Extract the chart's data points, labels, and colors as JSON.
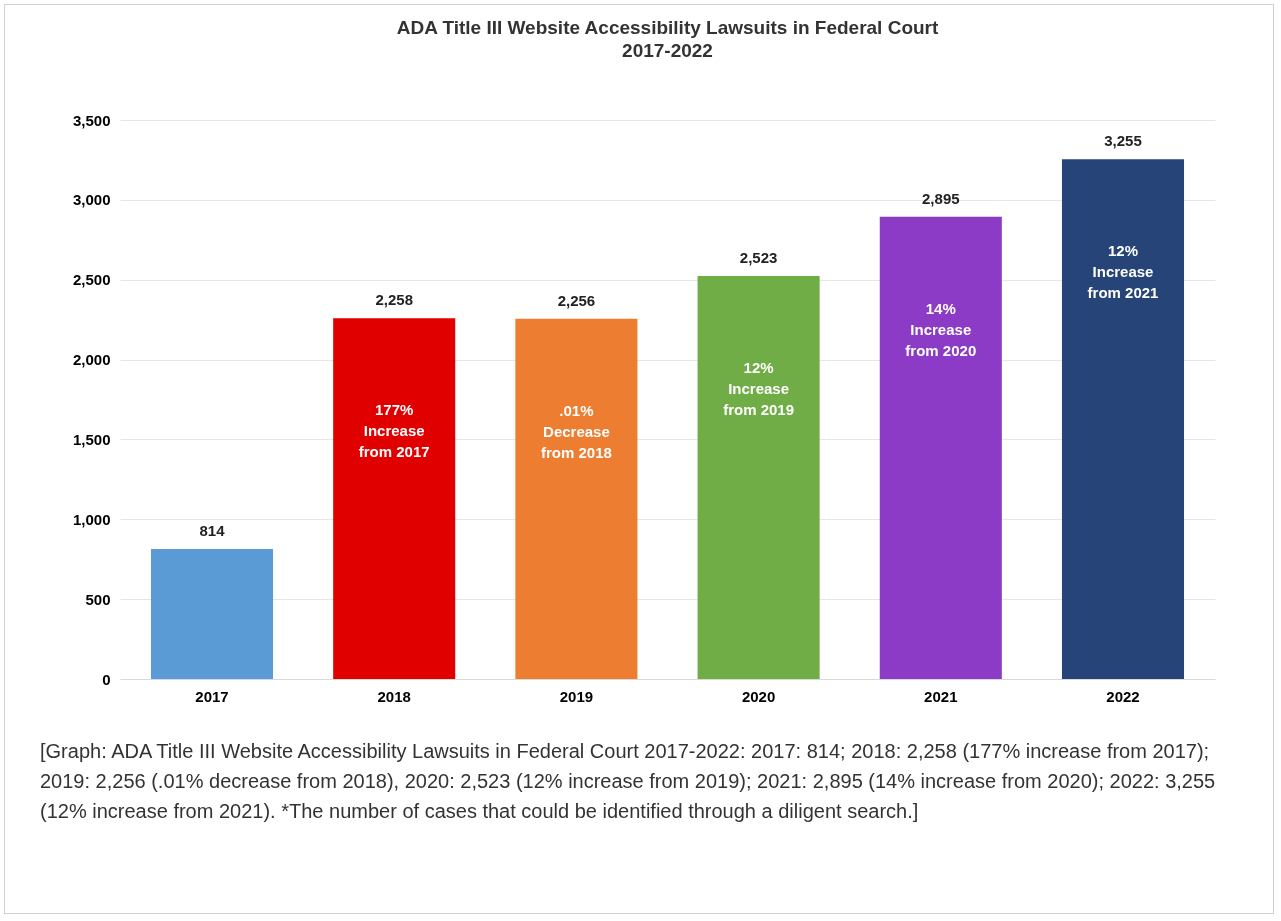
{
  "chart_data": {
    "type": "bar",
    "title": "ADA Title III Website Accessibility Lawsuits in Federal Court",
    "subtitle": "2017-2022",
    "categories": [
      "2017",
      "2018",
      "2019",
      "2020",
      "2021",
      "2022"
    ],
    "values": [
      814,
      2258,
      2256,
      2523,
      2895,
      3255
    ],
    "colors": [
      "#5b9bd5",
      "#e00000",
      "#ed7d31",
      "#70ad47",
      "#8b3bc6",
      "#264478"
    ],
    "ylim": [
      0,
      3500
    ],
    "yticks": [
      {
        "value": 0,
        "label": "0"
      },
      {
        "value": 500,
        "label": "500"
      },
      {
        "value": 1000,
        "label": "1,000"
      },
      {
        "value": 1500,
        "label": "1,500"
      },
      {
        "value": 2000,
        "label": "2,000"
      },
      {
        "value": 2500,
        "label": "2,500"
      },
      {
        "value": 3000,
        "label": "3,000"
      },
      {
        "value": 3500,
        "label": "3,500"
      }
    ],
    "grid": true,
    "value_labels": [
      "814",
      "2,258",
      "2,256",
      "2,523",
      "2,895",
      "3,255"
    ],
    "annotations": [
      "177%\nIncrease\nfrom 2017",
      ".01%\nDecrease\nfrom 2018",
      "12%\nIncrease\nfrom 2019",
      "14%\nIncrease\nfrom 2020",
      "12%\nIncrease\nfrom 2021",
      "[Graph: ADA Title III Website Accessibility Lawsuits in Federal Court 2017-2022: 2017: 814; 2018: 2,258 (177% increase from 2017); 2019: 2,256 (.01% decrease from 2018), 2020: 2,523 (12% increase from 2019); 2021: 2,895 (14% increase from 2020); 2022: 3,255 (12% increase from 2021). *The number of cases that could be identified through a diligent search.]"
    ]
  }
}
